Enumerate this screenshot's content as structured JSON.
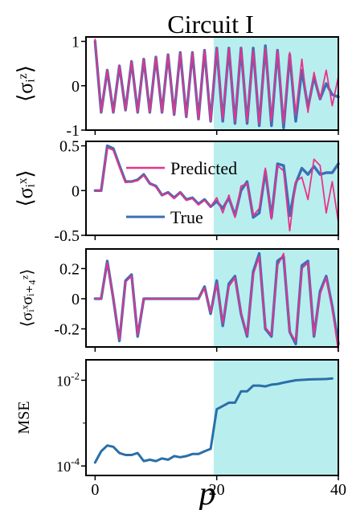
{
  "figure_title": "Circuit I",
  "shared_xlabel": "p",
  "x_ticks": [
    0,
    20,
    40
  ],
  "x_tick_labels": [
    "0",
    "20",
    "40"
  ],
  "xlim": [
    -1.5,
    40
  ],
  "shaded_region": {
    "x_start": 19.5,
    "x_end": 40,
    "color": "#b9eeee"
  },
  "colors": {
    "true": "#3b6fb6",
    "predicted": "#e8338a",
    "mse": "#2a6fa8"
  },
  "legend": {
    "predicted": "Predicted",
    "true": "True"
  },
  "chart_data": [
    {
      "type": "line",
      "ylabel": "⟨σᵢᶻ⟩",
      "ylim": [
        -1,
        1.1
      ],
      "yticks": [
        1,
        0,
        -1
      ],
      "ytick_labels": [
        "1",
        "0",
        "-1"
      ],
      "x": [
        0,
        1,
        2,
        3,
        4,
        5,
        6,
        7,
        8,
        9,
        10,
        11,
        12,
        13,
        14,
        15,
        16,
        17,
        18,
        19,
        20,
        21,
        22,
        23,
        24,
        25,
        26,
        27,
        28,
        29,
        30,
        31,
        32,
        33,
        34,
        35,
        36,
        37,
        38,
        39,
        40
      ],
      "series": [
        {
          "name": "True",
          "values": [
            1.0,
            -0.6,
            0.35,
            -0.6,
            0.45,
            -0.55,
            0.55,
            -0.6,
            0.6,
            -0.6,
            0.65,
            -0.6,
            0.7,
            -0.65,
            0.75,
            -0.7,
            0.75,
            -0.75,
            0.8,
            -0.8,
            0.85,
            -0.8,
            0.85,
            -0.85,
            0.85,
            -0.85,
            0.85,
            -0.9,
            0.9,
            -0.9,
            0.8,
            -0.95,
            0.7,
            -0.8,
            0.35,
            -0.5,
            0.2,
            -0.3,
            0.05,
            -0.2,
            -0.25
          ]
        },
        {
          "name": "Predicted",
          "values": [
            1.05,
            -0.6,
            0.35,
            -0.6,
            0.45,
            -0.55,
            0.55,
            -0.6,
            0.6,
            -0.6,
            0.65,
            -0.6,
            0.7,
            -0.65,
            0.75,
            -0.7,
            0.75,
            -0.75,
            0.8,
            -0.8,
            0.85,
            -0.75,
            0.85,
            -0.8,
            0.85,
            -0.8,
            0.8,
            -0.85,
            0.85,
            -0.8,
            0.8,
            -0.85,
            0.75,
            -0.65,
            0.6,
            -0.6,
            0.3,
            -0.3,
            0.35,
            -0.45,
            0.2
          ]
        }
      ]
    },
    {
      "type": "line",
      "ylabel": "⟨σᵢˣ⟩",
      "ylim": [
        -0.5,
        0.55
      ],
      "yticks": [
        0.5,
        0,
        -0.5
      ],
      "ytick_labels": [
        "0.5",
        "0",
        "-0.5"
      ],
      "x": [
        0,
        1,
        2,
        3,
        4,
        5,
        6,
        7,
        8,
        9,
        10,
        11,
        12,
        13,
        14,
        15,
        16,
        17,
        18,
        19,
        20,
        21,
        22,
        23,
        24,
        25,
        26,
        27,
        28,
        29,
        30,
        31,
        32,
        33,
        34,
        35,
        36,
        37,
        38,
        39,
        40
      ],
      "series": [
        {
          "name": "True",
          "values": [
            0.0,
            0.0,
            0.5,
            0.47,
            0.28,
            0.1,
            0.1,
            0.12,
            0.18,
            0.08,
            0.05,
            -0.05,
            -0.02,
            -0.08,
            -0.02,
            -0.1,
            -0.08,
            -0.15,
            -0.1,
            -0.18,
            -0.12,
            -0.2,
            -0.08,
            -0.28,
            0.0,
            0.1,
            -0.3,
            -0.25,
            0.22,
            -0.3,
            0.3,
            0.28,
            -0.28,
            0.08,
            0.25,
            0.18,
            0.27,
            0.18,
            0.2,
            0.2,
            0.3
          ]
        },
        {
          "name": "Predicted",
          "values": [
            0.0,
            0.0,
            0.48,
            0.45,
            0.26,
            0.09,
            0.1,
            0.11,
            0.17,
            0.08,
            0.04,
            -0.05,
            -0.03,
            -0.09,
            -0.02,
            -0.11,
            -0.09,
            -0.16,
            -0.11,
            -0.18,
            -0.08,
            -0.25,
            -0.05,
            -0.3,
            0.05,
            0.08,
            -0.28,
            -0.2,
            0.25,
            -0.32,
            0.28,
            0.22,
            -0.45,
            0.1,
            0.15,
            -0.1,
            0.35,
            0.28,
            -0.25,
            0.1,
            -0.35
          ]
        }
      ]
    },
    {
      "type": "line",
      "ylabel": "⟨σᵢˣσᵢ₊₄ᶻ⟩",
      "ylim": [
        -0.32,
        0.33
      ],
      "yticks": [
        0.2,
        0,
        -0.2
      ],
      "ytick_labels": [
        "0.2",
        "0",
        "-0.2"
      ],
      "x": [
        0,
        1,
        2,
        3,
        4,
        5,
        6,
        7,
        8,
        9,
        10,
        11,
        12,
        13,
        14,
        15,
        16,
        17,
        18,
        19,
        20,
        21,
        22,
        23,
        24,
        25,
        26,
        27,
        28,
        29,
        30,
        31,
        32,
        33,
        34,
        35,
        36,
        37,
        38,
        39,
        40
      ],
      "series": [
        {
          "name": "True",
          "values": [
            0.0,
            0.0,
            0.25,
            0.0,
            -0.28,
            0.12,
            0.16,
            -0.25,
            0.0,
            0.0,
            0.0,
            0.0,
            0.0,
            0.0,
            0.0,
            0.0,
            0.0,
            0.0,
            0.08,
            -0.1,
            0.12,
            -0.18,
            0.1,
            0.15,
            -0.1,
            -0.25,
            0.18,
            0.3,
            -0.2,
            -0.25,
            0.25,
            0.28,
            -0.22,
            -0.3,
            0.22,
            0.25,
            -0.25,
            0.05,
            0.15,
            -0.05,
            -0.3
          ]
        },
        {
          "name": "Predicted",
          "values": [
            0.0,
            0.0,
            0.24,
            0.0,
            -0.27,
            0.11,
            0.15,
            -0.24,
            0.0,
            0.0,
            0.0,
            0.0,
            0.0,
            0.0,
            0.0,
            0.0,
            0.0,
            0.0,
            0.07,
            -0.09,
            0.1,
            -0.16,
            0.08,
            0.14,
            -0.09,
            -0.24,
            0.16,
            0.28,
            -0.19,
            -0.24,
            0.22,
            0.3,
            -0.22,
            -0.28,
            0.2,
            0.24,
            -0.24,
            0.03,
            0.14,
            -0.06,
            -0.35
          ]
        }
      ]
    },
    {
      "type": "line",
      "ylabel": "MSE",
      "yscale": "log",
      "ylim": [
        6e-05,
        0.03
      ],
      "yticks": [
        0.0001,
        0.01
      ],
      "ytick_labels": [
        "10-4",
        "10-2"
      ],
      "x": [
        0,
        1,
        2,
        3,
        4,
        5,
        6,
        7,
        8,
        9,
        10,
        11,
        12,
        13,
        14,
        15,
        16,
        17,
        18,
        19,
        20,
        21,
        22,
        23,
        24,
        25,
        26,
        27,
        28,
        29,
        30,
        31,
        32,
        33,
        34,
        35,
        36,
        37,
        38,
        39
      ],
      "series": [
        {
          "name": "MSE",
          "values": [
            0.00012,
            0.00022,
            0.0003,
            0.00028,
            0.0002,
            0.00018,
            0.00018,
            0.0002,
            0.00013,
            0.00014,
            0.00013,
            0.00015,
            0.00014,
            0.00017,
            0.00016,
            0.00017,
            0.00019,
            0.00019,
            0.00022,
            0.00025,
            0.0021,
            0.0025,
            0.003,
            0.003,
            0.0055,
            0.0055,
            0.0075,
            0.0075,
            0.0072,
            0.0079,
            0.0082,
            0.0088,
            0.0094,
            0.01,
            0.0102,
            0.0104,
            0.0105,
            0.0106,
            0.0107,
            0.011
          ]
        }
      ]
    }
  ]
}
